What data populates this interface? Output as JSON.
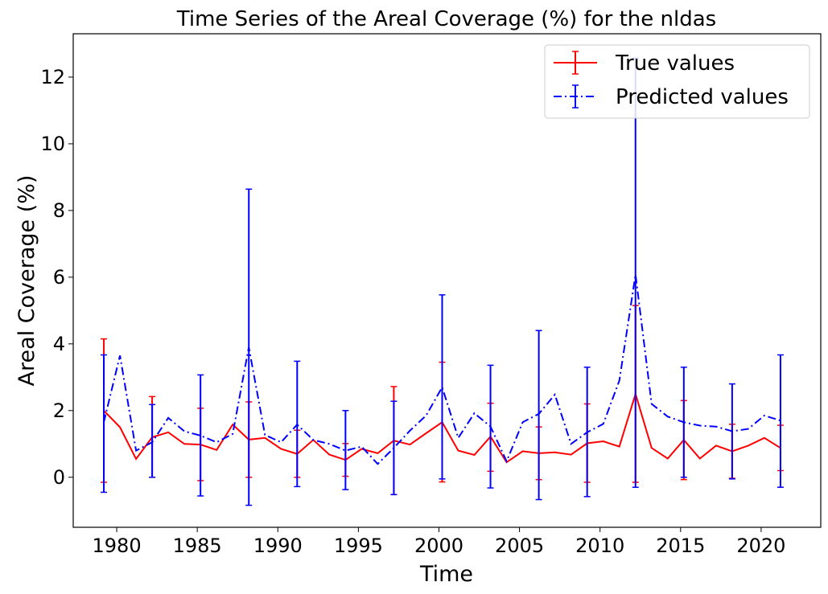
{
  "chart_data": {
    "type": "line",
    "title": "Time Series of the Areal Coverage (%) for the nldas",
    "xlabel": "Time",
    "ylabel": "Areal Coverage (%)",
    "xlim": [
      1977.3,
      2023.7
    ],
    "ylim": [
      -1.5,
      13.3
    ],
    "xticks": [
      1980,
      1985,
      1990,
      1995,
      2000,
      2005,
      2010,
      2015,
      2020
    ],
    "yticks": [
      0,
      2,
      4,
      6,
      8,
      10,
      12
    ],
    "grid": false,
    "legend_position": "top-right",
    "x": [
      1979.2,
      1980.2,
      1981.2,
      1982.2,
      1983.2,
      1984.2,
      1985.2,
      1986.2,
      1987.2,
      1988.2,
      1989.2,
      1990.2,
      1991.2,
      1992.2,
      1993.2,
      1994.2,
      1995.2,
      1996.2,
      1997.2,
      1998.2,
      1999.2,
      2000.2,
      2001.2,
      2002.2,
      2003.2,
      2004.2,
      2005.2,
      2006.2,
      2007.2,
      2008.2,
      2009.2,
      2010.2,
      2011.2,
      2012.2,
      2013.2,
      2014.2,
      2015.2,
      2016.2,
      2017.2,
      2018.2,
      2019.2,
      2020.2,
      2021.2
    ],
    "series": [
      {
        "name": "True values",
        "color": "#ff0000",
        "style": "solid",
        "values": [
          2.0,
          1.5,
          0.55,
          1.2,
          1.35,
          1.0,
          0.98,
          0.82,
          1.58,
          1.13,
          1.18,
          0.85,
          0.7,
          1.12,
          0.68,
          0.52,
          0.85,
          0.72,
          1.1,
          0.98,
          1.32,
          1.65,
          0.8,
          0.67,
          1.22,
          0.45,
          0.78,
          0.72,
          0.75,
          0.68,
          1.02,
          1.08,
          0.92,
          2.5,
          0.88,
          0.56,
          1.12,
          0.56,
          0.95,
          0.78,
          0.95,
          1.18,
          0.88
        ],
        "error_bars": [
          {
            "x": 1979.2,
            "low": -0.15,
            "high": 4.15
          },
          {
            "x": 1982.2,
            "low": 0.0,
            "high": 2.42
          },
          {
            "x": 1985.2,
            "low": -0.1,
            "high": 2.07
          },
          {
            "x": 1988.2,
            "low": 0.0,
            "high": 2.26
          },
          {
            "x": 1991.2,
            "low": 0.0,
            "high": 1.41
          },
          {
            "x": 1994.2,
            "low": 0.03,
            "high": 1.01
          },
          {
            "x": 1997.2,
            "low": -0.52,
            "high": 2.72
          },
          {
            "x": 2000.2,
            "low": -0.14,
            "high": 3.45
          },
          {
            "x": 2003.2,
            "low": 0.18,
            "high": 2.22
          },
          {
            "x": 2006.2,
            "low": -0.07,
            "high": 1.51
          },
          {
            "x": 2009.2,
            "low": -0.15,
            "high": 2.2
          },
          {
            "x": 2012.2,
            "low": -0.15,
            "high": 5.15
          },
          {
            "x": 2015.2,
            "low": -0.07,
            "high": 2.3
          },
          {
            "x": 2018.2,
            "low": -0.03,
            "high": 1.59
          },
          {
            "x": 2021.2,
            "low": 0.2,
            "high": 1.56
          }
        ]
      },
      {
        "name": "Predicted values",
        "color": "#0000ff",
        "style": "dashdot",
        "values": [
          1.65,
          3.65,
          0.8,
          1.05,
          1.78,
          1.38,
          1.25,
          1.05,
          1.3,
          3.9,
          1.27,
          1.05,
          1.58,
          1.12,
          1.0,
          0.8,
          0.92,
          0.4,
          0.88,
          1.4,
          1.85,
          2.7,
          1.18,
          1.92,
          1.52,
          0.48,
          1.65,
          1.9,
          2.48,
          1.0,
          1.35,
          1.6,
          2.9,
          6.08,
          2.2,
          1.82,
          1.65,
          1.55,
          1.52,
          1.38,
          1.45,
          1.85,
          1.7
        ],
        "error_bars": [
          {
            "x": 1979.2,
            "low": -0.45,
            "high": 3.67
          },
          {
            "x": 1982.2,
            "low": 0.0,
            "high": 2.18
          },
          {
            "x": 1985.2,
            "low": -0.56,
            "high": 3.07
          },
          {
            "x": 1988.2,
            "low": -0.84,
            "high": 8.64
          },
          {
            "x": 1991.2,
            "low": -0.28,
            "high": 3.48
          },
          {
            "x": 1994.2,
            "low": -0.37,
            "high": 2.0
          },
          {
            "x": 1997.2,
            "low": -0.52,
            "high": 2.28
          },
          {
            "x": 2000.2,
            "low": -0.05,
            "high": 5.47
          },
          {
            "x": 2003.2,
            "low": -0.32,
            "high": 3.36
          },
          {
            "x": 2006.2,
            "low": -0.67,
            "high": 4.4
          },
          {
            "x": 2009.2,
            "low": -0.58,
            "high": 3.3
          },
          {
            "x": 2012.2,
            "low": -0.3,
            "high": 12.57
          },
          {
            "x": 2015.2,
            "low": 0.0,
            "high": 3.3
          },
          {
            "x": 2018.2,
            "low": -0.05,
            "high": 2.8
          },
          {
            "x": 2021.2,
            "low": -0.3,
            "high": 3.67
          }
        ]
      }
    ]
  }
}
